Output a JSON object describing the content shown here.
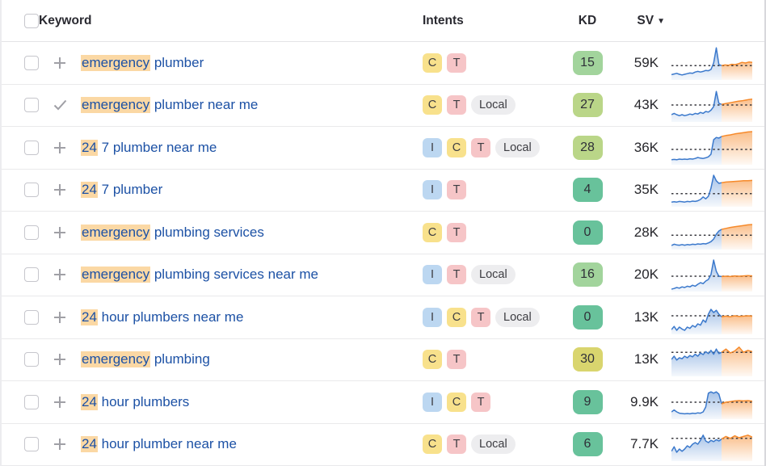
{
  "header": {
    "keyword": "Keyword",
    "intents": "Intents",
    "kd": "KD",
    "sv": "SV",
    "sv_sort_arrow": "▼"
  },
  "colors": {
    "keyword_link": "#1c51a5",
    "keyword_highlight": "#fbd8a4",
    "intent_informational": "#bcd7f1",
    "intent_commercial": "#f8e18c",
    "intent_transactional": "#f6c5c7",
    "intent_local": "#ededef",
    "kd_easy_green": "#68c29b",
    "kd_light_green": "#a2d49c",
    "kd_lime_green": "#bad688",
    "kd_yellow": "#d9d56e",
    "spark_history_blue": "#3b79cc",
    "spark_forecast_orange": "#f68a2b"
  },
  "rows": [
    {
      "action": "add",
      "hl": "emergency",
      "rest": " plumber",
      "intents": [
        {
          "label": "C",
          "type": "c"
        },
        {
          "label": "T",
          "type": "t"
        }
      ],
      "kd": "15",
      "kd_tier": "kd-light",
      "sv": "59K",
      "spark": {
        "dash": 0.42,
        "blue": [
          0.14,
          0.16,
          0.18,
          0.15,
          0.13,
          0.15,
          0.17,
          0.19,
          0.18,
          0.22,
          0.24,
          0.22,
          0.24,
          0.27,
          0.26,
          0.3,
          0.5,
          0.97,
          0.45,
          0.42
        ],
        "orange": [
          0.42,
          0.44,
          0.43,
          0.46,
          0.45,
          0.48,
          0.52,
          0.5,
          0.53,
          0.52
        ]
      }
    },
    {
      "action": "added",
      "hl": "emergency",
      "rest": " plumber near me",
      "intents": [
        {
          "label": "C",
          "type": "c"
        },
        {
          "label": "T",
          "type": "t"
        },
        {
          "label": "Local",
          "type": "local"
        }
      ],
      "kd": "27",
      "kd_tier": "kd-lime",
      "sv": "43K",
      "spark": {
        "dash": 0.5,
        "blue": [
          0.2,
          0.24,
          0.2,
          0.17,
          0.2,
          0.17,
          0.19,
          0.22,
          0.2,
          0.24,
          0.22,
          0.27,
          0.24,
          0.3,
          0.28,
          0.34,
          0.45,
          0.92,
          0.55,
          0.52
        ],
        "orange": [
          0.52,
          0.54,
          0.56,
          0.58,
          0.6,
          0.62,
          0.63,
          0.65,
          0.67,
          0.68
        ]
      }
    },
    {
      "action": "add",
      "hl": "24",
      "rest": " 7 plumber near me",
      "intents": [
        {
          "label": "I",
          "type": "i"
        },
        {
          "label": "C",
          "type": "c"
        },
        {
          "label": "T",
          "type": "t"
        },
        {
          "label": "Local",
          "type": "local"
        }
      ],
      "kd": "28",
      "kd_tier": "kd-lime",
      "sv": "36K",
      "spark": {
        "dash": 0.45,
        "blue": [
          0.13,
          0.14,
          0.13,
          0.15,
          0.14,
          0.15,
          0.14,
          0.16,
          0.15,
          0.17,
          0.2,
          0.18,
          0.17,
          0.19,
          0.22,
          0.3,
          0.75,
          0.82,
          0.8,
          0.85
        ],
        "orange": [
          0.85,
          0.88,
          0.9,
          0.93,
          0.95,
          0.97,
          0.99,
          1.0
        ]
      }
    },
    {
      "action": "add",
      "hl": "24",
      "rest": " 7 plumber",
      "intents": [
        {
          "label": "I",
          "type": "i"
        },
        {
          "label": "T",
          "type": "t"
        }
      ],
      "kd": "4",
      "kd_tier": "kd-green",
      "sv": "35K",
      "spark": {
        "dash": 0.38,
        "blue": [
          0.12,
          0.13,
          0.12,
          0.14,
          0.13,
          0.12,
          0.14,
          0.13,
          0.15,
          0.14,
          0.16,
          0.2,
          0.28,
          0.22,
          0.3,
          0.55,
          0.95,
          0.78,
          0.7,
          0.72
        ],
        "orange": [
          0.72,
          0.74,
          0.75,
          0.76,
          0.77,
          0.78,
          0.78,
          0.79
        ]
      }
    },
    {
      "action": "add",
      "hl": "emergency",
      "rest": " plumbing services",
      "intents": [
        {
          "label": "C",
          "type": "c"
        },
        {
          "label": "T",
          "type": "t"
        }
      ],
      "kd": "0",
      "kd_tier": "kd-green",
      "sv": "28K",
      "spark": {
        "dash": 0.42,
        "blue": [
          0.1,
          0.14,
          0.12,
          0.11,
          0.13,
          0.11,
          0.13,
          0.12,
          0.14,
          0.13,
          0.15,
          0.14,
          0.16,
          0.15,
          0.18,
          0.22,
          0.3,
          0.45,
          0.55,
          0.6
        ],
        "orange": [
          0.6,
          0.63,
          0.66,
          0.68,
          0.7,
          0.72,
          0.74,
          0.75
        ]
      }
    },
    {
      "action": "add",
      "hl": "emergency",
      "rest": " plumbing services near me",
      "intents": [
        {
          "label": "I",
          "type": "i"
        },
        {
          "label": "T",
          "type": "t"
        },
        {
          "label": "Local",
          "type": "local"
        }
      ],
      "kd": "16",
      "kd_tier": "kd-light",
      "sv": "20K",
      "spark": {
        "dash": 0.45,
        "blue": [
          0.05,
          0.07,
          0.1,
          0.08,
          0.12,
          0.1,
          0.14,
          0.12,
          0.17,
          0.14,
          0.2,
          0.25,
          0.22,
          0.3,
          0.35,
          0.5,
          0.95,
          0.6,
          0.45,
          0.44
        ],
        "orange": [
          0.44,
          0.45,
          0.44,
          0.46,
          0.45,
          0.46,
          0.47,
          0.46
        ]
      }
    },
    {
      "action": "add",
      "hl": "24",
      "rest": " hour plumbers near me",
      "intents": [
        {
          "label": "I",
          "type": "i"
        },
        {
          "label": "C",
          "type": "c"
        },
        {
          "label": "T",
          "type": "t"
        },
        {
          "label": "Local",
          "type": "local"
        }
      ],
      "kd": "0",
      "kd_tier": "kd-green",
      "sv": "13K",
      "spark": {
        "dash": 0.55,
        "blue": [
          0.12,
          0.22,
          0.1,
          0.2,
          0.14,
          0.1,
          0.2,
          0.16,
          0.25,
          0.2,
          0.3,
          0.26,
          0.42,
          0.35,
          0.6,
          0.75,
          0.65,
          0.72,
          0.6,
          0.52
        ],
        "orange": [
          0.52,
          0.54,
          0.52,
          0.55,
          0.53,
          0.54,
          0.55,
          0.54
        ]
      }
    },
    {
      "action": "add",
      "hl": "emergency",
      "rest": " plumbing",
      "intents": [
        {
          "label": "C",
          "type": "c"
        },
        {
          "label": "T",
          "type": "t"
        }
      ],
      "kd": "30",
      "kd_tier": "kd-yellow",
      "sv": "13K",
      "spark": {
        "dash": 0.72,
        "blue": [
          0.5,
          0.6,
          0.48,
          0.55,
          0.52,
          0.6,
          0.55,
          0.62,
          0.58,
          0.66,
          0.6,
          0.7,
          0.65,
          0.74,
          0.68,
          0.78,
          0.66,
          0.82,
          0.68,
          0.72
        ],
        "orange": [
          0.72,
          0.82,
          0.7,
          0.76,
          0.88,
          0.72,
          0.78,
          0.74
        ]
      }
    },
    {
      "action": "add",
      "hl": "24",
      "rest": " hour plumbers",
      "intents": [
        {
          "label": "I",
          "type": "i"
        },
        {
          "label": "C",
          "type": "c"
        },
        {
          "label": "T",
          "type": "t"
        }
      ],
      "kd": "9",
      "kd_tier": "kd-green",
      "sv": "9.9K",
      "spark": {
        "dash": 0.5,
        "blue": [
          0.2,
          0.26,
          0.2,
          0.16,
          0.15,
          0.14,
          0.15,
          0.14,
          0.16,
          0.15,
          0.17,
          0.16,
          0.2,
          0.35,
          0.78,
          0.82,
          0.78,
          0.82,
          0.75,
          0.45
        ],
        "orange": [
          0.45,
          0.5,
          0.52,
          0.54,
          0.55,
          0.54,
          0.55,
          0.53
        ]
      }
    },
    {
      "action": "add",
      "hl": "24",
      "rest": " hour plumber near me",
      "intents": [
        {
          "label": "C",
          "type": "c"
        },
        {
          "label": "T",
          "type": "t"
        },
        {
          "label": "Local",
          "type": "local"
        }
      ],
      "kd": "6",
      "kd_tier": "kd-green",
      "sv": "7.7K",
      "spark": {
        "dash": 0.68,
        "blue": [
          0.28,
          0.42,
          0.25,
          0.35,
          0.28,
          0.35,
          0.45,
          0.4,
          0.5,
          0.55,
          0.5,
          0.62,
          0.78,
          0.6,
          0.55,
          0.62,
          0.58,
          0.64,
          0.6,
          0.66
        ],
        "orange": [
          0.66,
          0.74,
          0.68,
          0.76,
          0.7,
          0.74,
          0.78,
          0.72
        ]
      }
    }
  ]
}
